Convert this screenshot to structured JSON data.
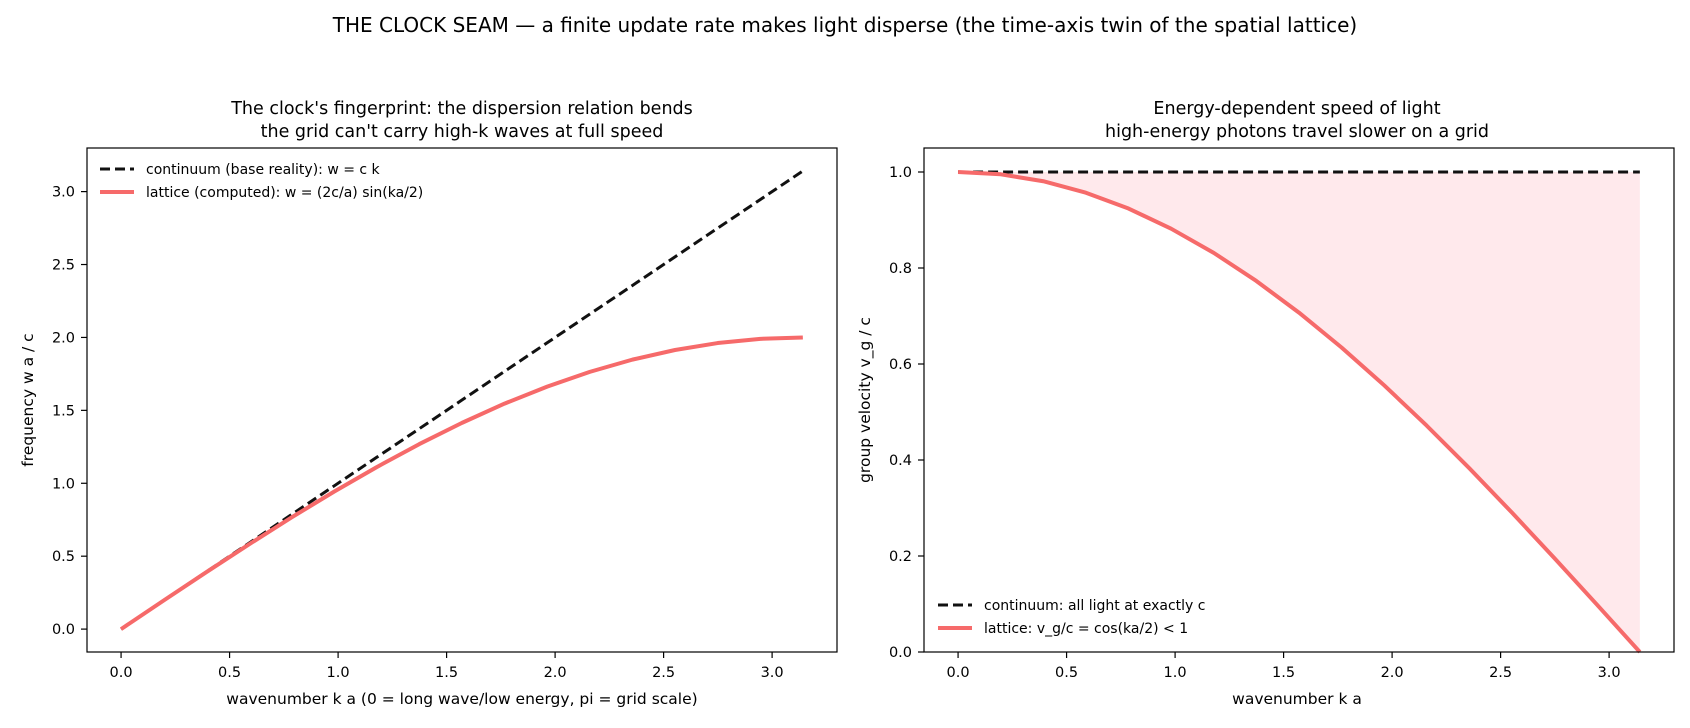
{
  "figure_title": "THE CLOCK SEAM — a finite update rate makes light disperse (the time-axis twin of the spatial lattice)",
  "colors": {
    "continuum": "#111111",
    "lattice": "#f66a6a",
    "fill": "#ffe9ec"
  },
  "chart_data": [
    {
      "type": "line",
      "title_lines": [
        "The clock's fingerprint: the dispersion relation bends",
        "the grid can't carry high-k waves at full speed"
      ],
      "xlabel": "wavenumber  k a   (0 = long wave/low energy,  pi = grid scale)",
      "ylabel": "frequency   w a / c",
      "xlim": [
        -0.157,
        3.299
      ],
      "ylim": [
        -0.157,
        3.299
      ],
      "xticks": [
        "0.0",
        "0.5",
        "1.0",
        "1.5",
        "2.0",
        "2.5",
        "3.0"
      ],
      "yticks": [
        "0.0",
        "0.5",
        "1.0",
        "1.5",
        "2.0",
        "2.5",
        "3.0"
      ],
      "grid": false,
      "legend_position": "upper-left",
      "x": [
        0,
        0.1963,
        0.3927,
        0.589,
        0.7854,
        0.9817,
        1.1781,
        1.3744,
        1.5708,
        1.7671,
        1.9635,
        2.1598,
        2.3562,
        2.5525,
        2.7489,
        2.9452,
        3.1416
      ],
      "series": [
        {
          "name": "continuum  (base reality):  w = c k",
          "style": "dashed",
          "values": [
            0,
            0.1963,
            0.3927,
            0.589,
            0.7854,
            0.9817,
            1.1781,
            1.3744,
            1.5708,
            1.7671,
            1.9635,
            2.1598,
            2.3562,
            2.5525,
            2.7489,
            2.9452,
            3.1416
          ]
        },
        {
          "name": "lattice  (computed):  w = (2c/a) sin(ka/2)",
          "style": "solid",
          "values": [
            0,
            0.196,
            0.3902,
            0.5806,
            0.7654,
            0.9428,
            1.111,
            1.2686,
            1.4142,
            1.5464,
            1.6629,
            1.7638,
            1.8478,
            1.9139,
            1.9616,
            1.9904,
            2.0
          ]
        }
      ]
    },
    {
      "type": "area",
      "title_lines": [
        "Energy-dependent speed of light",
        "high-energy photons travel slower on a grid"
      ],
      "xlabel": "wavenumber  k a",
      "ylabel": "group velocity   v_g / c",
      "xlim": [
        -0.157,
        3.299
      ],
      "ylim": [
        0,
        1.05
      ],
      "xticks": [
        "0.0",
        "0.5",
        "1.0",
        "1.5",
        "2.0",
        "2.5",
        "3.0"
      ],
      "yticks": [
        "0.0",
        "0.2",
        "0.4",
        "0.6",
        "0.8",
        "1.0"
      ],
      "grid": false,
      "legend_position": "lower-left",
      "shaded_between": [
        "continuum",
        "lattice"
      ],
      "x": [
        0,
        0.1963,
        0.3927,
        0.589,
        0.7854,
        0.9817,
        1.1781,
        1.3744,
        1.5708,
        1.7671,
        1.9635,
        2.1598,
        2.3562,
        2.5525,
        2.7489,
        2.9452,
        3.1416
      ],
      "series": [
        {
          "name": "continuum:  all light at exactly c",
          "style": "dashed",
          "values": [
            1,
            1,
            1,
            1,
            1,
            1,
            1,
            1,
            1,
            1,
            1,
            1,
            1,
            1,
            1,
            1,
            1
          ]
        },
        {
          "name": "lattice:  v_g/c = cos(ka/2)  <  1",
          "style": "solid",
          "values": [
            1.0,
            0.9952,
            0.9808,
            0.9569,
            0.9239,
            0.8819,
            0.8315,
            0.773,
            0.7071,
            0.6344,
            0.5556,
            0.4714,
            0.3827,
            0.2903,
            0.1951,
            0.098,
            0.0
          ]
        }
      ]
    }
  ]
}
